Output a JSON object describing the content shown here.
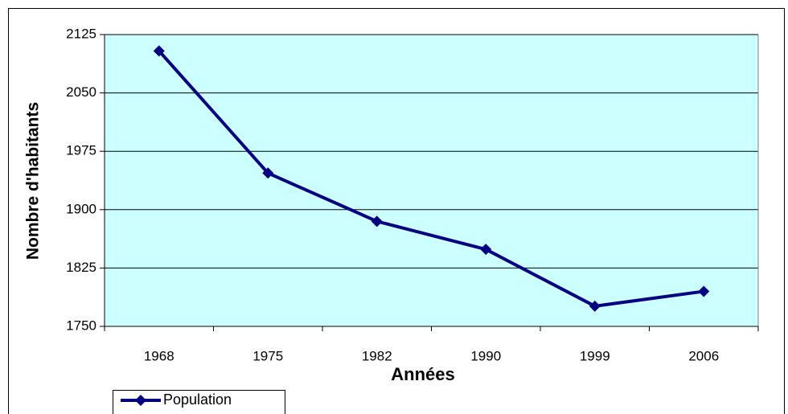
{
  "chart_data": {
    "type": "line",
    "x_label": "Années",
    "y_label": "Nombre d'habitants",
    "categories": [
      "1968",
      "1975",
      "1982",
      "1990",
      "1999",
      "2006"
    ],
    "series": [
      {
        "name": "Population",
        "color": "#000080",
        "values": [
          2104,
          1947,
          1885,
          1849,
          1776,
          1795
        ]
      }
    ],
    "ylim": [
      1750,
      2125
    ],
    "yticks": [
      1750,
      1825,
      1900,
      1975,
      2050,
      2125
    ],
    "grid": true,
    "plot_background": "#ccffff",
    "legend": "bottom-left"
  }
}
